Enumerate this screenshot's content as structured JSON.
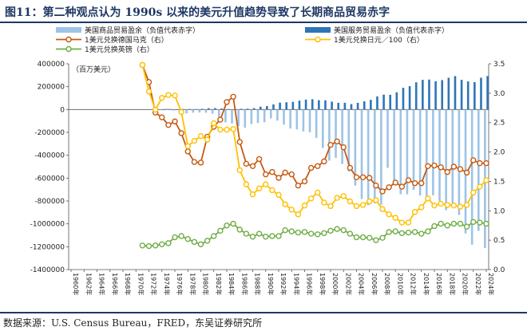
{
  "title": "图11：第二种观点认为 1990s 以来的美元升值趋势导致了长期商品贸易赤字",
  "source": "数据来源：U.S. Census Bureau，FRED，东吴证券研究所",
  "colors": {
    "goods_bar": "#9dc3e6",
    "services_bar": "#2e75b6",
    "dem": "#c55a11",
    "jpy": "#ffc000",
    "gbp": "#70ad47",
    "title": "#1f3864"
  },
  "chart_data": {
    "type": "bar+line",
    "unit_label": "（百万美元）",
    "x_ticks": [
      "1960年",
      "1962年",
      "1964年",
      "1966年",
      "1968年",
      "1970年",
      "1972年",
      "1974年",
      "1976年",
      "1978年",
      "1980年",
      "1982年",
      "1984年",
      "1986年",
      "1988年",
      "1990年",
      "1992年",
      "1994年",
      "1996年",
      "1998年",
      "2000年",
      "2002年",
      "2004年",
      "2006年",
      "2008年",
      "2010年",
      "2012年",
      "2014年",
      "2016年",
      "2018年",
      "2020年",
      "2022年",
      "2024年"
    ],
    "y_left": {
      "min": -1400000,
      "max": 400000,
      "ticks": [
        "-1400000",
        "-1200000",
        "-1000000",
        "-800000",
        "-600000",
        "-400000",
        "-200000",
        "0",
        "200000",
        "400000"
      ]
    },
    "y_right": {
      "min": 0,
      "max": 3.5,
      "ticks": [
        "0.0",
        "0.5",
        "1.0",
        "1.5",
        "2.0",
        "2.5",
        "3.0",
        "3.5"
      ]
    },
    "legend": [
      {
        "key": "goods",
        "label": "美国商品贸易盈余（负值代表赤字）"
      },
      {
        "key": "services",
        "label": "美国服务贸易盈余（负值代表赤字）"
      },
      {
        "key": "dem",
        "label": "1美元兑换德国马克（右）"
      },
      {
        "key": "jpy",
        "label": "1美元兑换日元／100（右）"
      },
      {
        "key": "gbp",
        "label": "1美元兑换英镑（右）"
      }
    ],
    "bar_years": [
      1973,
      1974,
      1975,
      1976,
      1977,
      1978,
      1979,
      1980,
      1981,
      1982,
      1983,
      1984,
      1985,
      1986,
      1987,
      1988,
      1989,
      1990,
      1991,
      1992,
      1993,
      1994,
      1995,
      1996,
      1997,
      1998,
      1999,
      2000,
      2001,
      2002,
      2003,
      2004,
      2005,
      2006,
      2007,
      2008,
      2009,
      2010,
      2011,
      2012,
      2013,
      2014,
      2015,
      2016,
      2017,
      2018,
      2019,
      2020,
      2021,
      2022,
      2023,
      2024
    ],
    "goods_balance": [
      1000,
      -5500,
      9000,
      -9500,
      -31000,
      -34000,
      -27500,
      -25500,
      -28000,
      -36500,
      -67000,
      -112500,
      -122000,
      -145000,
      -159500,
      -127000,
      -118000,
      -111000,
      -76900,
      -96900,
      -132500,
      -166000,
      -173700,
      -191000,
      -198400,
      -248200,
      -336200,
      -446800,
      -422400,
      -475200,
      -541600,
      -665400,
      -782800,
      -837300,
      -821200,
      -832500,
      -509700,
      -648700,
      -740600,
      -741100,
      -702200,
      -751500,
      -761900,
      -749800,
      -799300,
      -880300,
      -857300,
      -922000,
      -1084000,
      -1183000,
      -1062000,
      -1211000
    ],
    "services_balance": [
      1000,
      1200,
      3500,
      3400,
      3800,
      4100,
      3000,
      6100,
      11900,
      12300,
      9300,
      3400,
      300,
      6500,
      7900,
      12400,
      24500,
      30200,
      45300,
      60400,
      63700,
      67300,
      77800,
      86900,
      90200,
      82100,
      80700,
      68900,
      58800,
      59000,
      47600,
      58500,
      71700,
      84700,
      114500,
      130300,
      128900,
      150600,
      190000,
      204400,
      238100,
      259600,
      262300,
      247700,
      257500,
      277900,
      292600,
      259400,
      245800,
      240000,
      278000,
      292900
    ],
    "dem_years": [
      1971,
      1972,
      1973,
      1974,
      1975,
      1976,
      1977,
      1978,
      1979,
      1980,
      1981,
      1982,
      1983,
      1984,
      1985,
      1986,
      1987,
      1988,
      1989,
      1990,
      1991,
      1992,
      1993,
      1994,
      1995,
      1996,
      1997,
      1998,
      1999,
      2000,
      2001,
      2002,
      2003,
      2004,
      2005,
      2006,
      2007,
      2008,
      2009,
      2010,
      2011,
      2012,
      2013,
      2014,
      2015,
      2016,
      2017,
      2018,
      2019,
      2020,
      2021,
      2022,
      2023,
      2024
    ],
    "dem": [
      3.48,
      3.19,
      2.67,
      2.59,
      2.46,
      2.52,
      2.32,
      2.01,
      1.83,
      1.82,
      2.26,
      2.43,
      2.55,
      2.85,
      2.94,
      2.17,
      1.8,
      1.76,
      1.88,
      1.62,
      1.66,
      1.56,
      1.65,
      1.62,
      1.43,
      1.5,
      1.73,
      1.76,
      1.84,
      2.12,
      2.18,
      2.08,
      1.73,
      1.57,
      1.57,
      1.56,
      1.43,
      1.33,
      1.4,
      1.48,
      1.41,
      1.52,
      1.47,
      1.47,
      1.76,
      1.77,
      1.74,
      1.66,
      1.75,
      1.71,
      1.65,
      1.86,
      1.81,
      1.81
    ],
    "jpy_years": [
      1971,
      1972,
      1973,
      1974,
      1975,
      1976,
      1977,
      1978,
      1979,
      1980,
      1981,
      1982,
      1983,
      1984,
      1985,
      1986,
      1987,
      1988,
      1989,
      1990,
      1991,
      1992,
      1993,
      1994,
      1995,
      1996,
      1997,
      1998,
      1999,
      2000,
      2001,
      2002,
      2003,
      2004,
      2005,
      2006,
      2007,
      2008,
      2009,
      2010,
      2011,
      2012,
      2013,
      2014,
      2015,
      2016,
      2017,
      2018,
      2019,
      2020,
      2021,
      2022,
      2023,
      2024
    ],
    "jpy_per_100": [
      3.48,
      3.03,
      2.72,
      2.92,
      2.97,
      2.96,
      2.68,
      2.1,
      2.19,
      2.27,
      2.21,
      2.49,
      2.38,
      2.38,
      2.39,
      1.69,
      1.45,
      1.28,
      1.38,
      1.45,
      1.35,
      1.27,
      1.11,
      1.02,
      0.94,
      1.09,
      1.21,
      1.31,
      1.14,
      1.08,
      1.22,
      1.25,
      1.16,
      1.08,
      1.1,
      1.16,
      1.18,
      1.03,
      0.94,
      0.88,
      0.8,
      0.8,
      0.98,
      1.06,
      1.21,
      1.09,
      1.12,
      1.1,
      1.09,
      1.07,
      1.1,
      1.31,
      1.41,
      1.52
    ],
    "gbp_years": [
      1971,
      1972,
      1973,
      1974,
      1975,
      1976,
      1977,
      1978,
      1979,
      1980,
      1981,
      1982,
      1983,
      1984,
      1985,
      1986,
      1987,
      1988,
      1989,
      1990,
      1991,
      1992,
      1993,
      1994,
      1995,
      1996,
      1997,
      1998,
      1999,
      2000,
      2001,
      2002,
      2003,
      2004,
      2005,
      2006,
      2007,
      2008,
      2009,
      2010,
      2011,
      2012,
      2013,
      2014,
      2015,
      2016,
      2017,
      2018,
      2019,
      2020,
      2021,
      2022,
      2023,
      2024
    ],
    "gbp": [
      0.41,
      0.4,
      0.41,
      0.43,
      0.45,
      0.55,
      0.57,
      0.52,
      0.47,
      0.43,
      0.49,
      0.57,
      0.66,
      0.75,
      0.78,
      0.68,
      0.61,
      0.56,
      0.61,
      0.56,
      0.57,
      0.57,
      0.67,
      0.65,
      0.63,
      0.64,
      0.61,
      0.6,
      0.62,
      0.66,
      0.69,
      0.67,
      0.61,
      0.55,
      0.55,
      0.54,
      0.5,
      0.54,
      0.64,
      0.65,
      0.62,
      0.63,
      0.64,
      0.61,
      0.65,
      0.74,
      0.78,
      0.75,
      0.78,
      0.78,
      0.73,
      0.81,
      0.8,
      0.78
    ]
  }
}
